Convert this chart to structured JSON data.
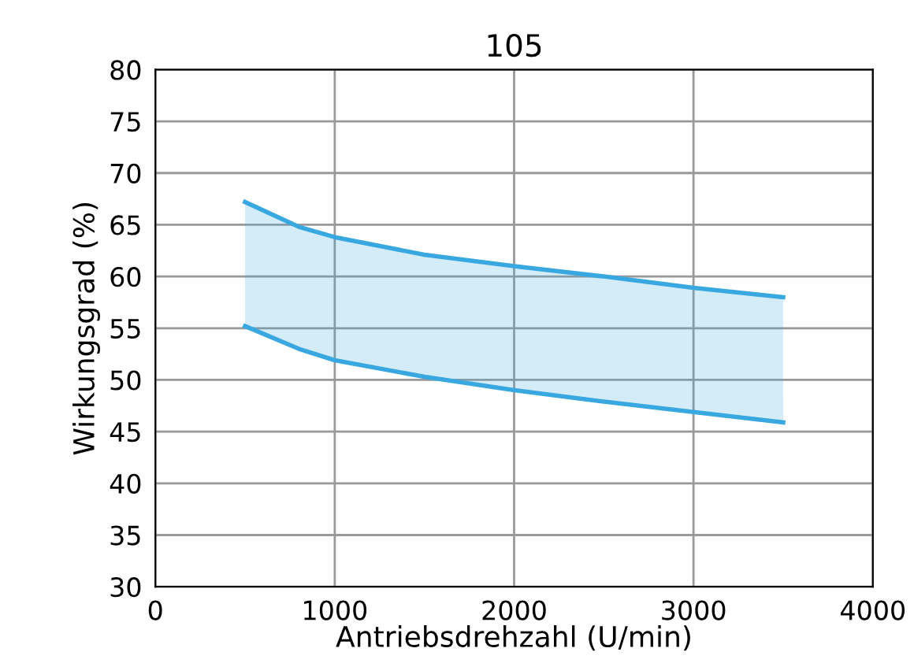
{
  "chart_data": {
    "type": "line",
    "title": "105",
    "xlabel": "Antriebsdrehzahl (U/min)",
    "ylabel": "Wirkungsgrad (%)",
    "x": [
      500,
      800,
      1000,
      1500,
      2000,
      2500,
      3000,
      3500
    ],
    "series": [
      {
        "color": "#3aa8e0",
        "values": [
          55.2,
          53.0,
          51.9,
          50.3,
          49.0,
          47.9,
          46.9,
          45.9
        ]
      },
      {
        "color": "#3aa8e0",
        "values": [
          67.2,
          64.8,
          63.8,
          62.1,
          61.0,
          60.0,
          58.9,
          58.0
        ]
      }
    ],
    "xlim": [
      0,
      4000
    ],
    "xticks": [
      0,
      1000,
      2000,
      3000,
      4000
    ],
    "ylim": [
      30,
      80
    ],
    "yticks": [
      30,
      35,
      40,
      45,
      50,
      55,
      60,
      65,
      70,
      75,
      80
    ],
    "grid": true,
    "marker": "none",
    "line_style": "solid"
  }
}
